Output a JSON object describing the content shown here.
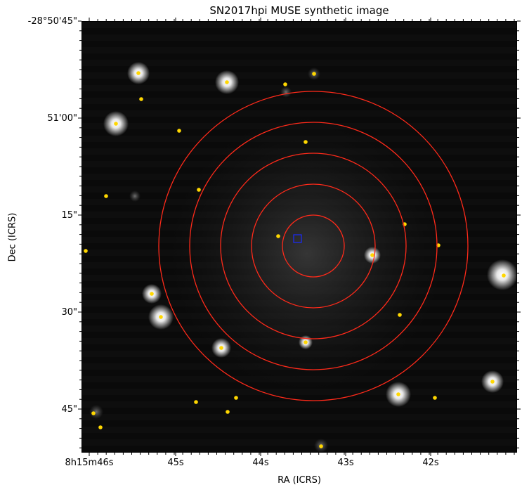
{
  "title": "SN2017hpi MUSE synthetic image",
  "xlabel": "RA (ICRS)",
  "ylabel": "Dec (ICRS)",
  "y_ticks": [
    {
      "label": "-28°50'45\"",
      "dec_arcsec": 45
    },
    {
      "label": "51'00\"",
      "dec_arcsec": 60
    },
    {
      "label": "15\"",
      "dec_arcsec": 75
    },
    {
      "label": "30\"",
      "dec_arcsec": 90
    },
    {
      "label": "45\"",
      "dec_arcsec": 105
    }
  ],
  "x_ticks": [
    {
      "label": "8h15m46s",
      "ra_s": 46
    },
    {
      "label": "45s",
      "ra_s": 45
    },
    {
      "label": "44s",
      "ra_s": 44
    },
    {
      "label": "43s",
      "ra_s": 43
    },
    {
      "label": "42s",
      "ra_s": 42
    }
  ],
  "colors": {
    "circles": "#ff2a1a",
    "sources": "#ffd700",
    "target": "#1a2aff",
    "background": "#0b0b0b"
  }
}
